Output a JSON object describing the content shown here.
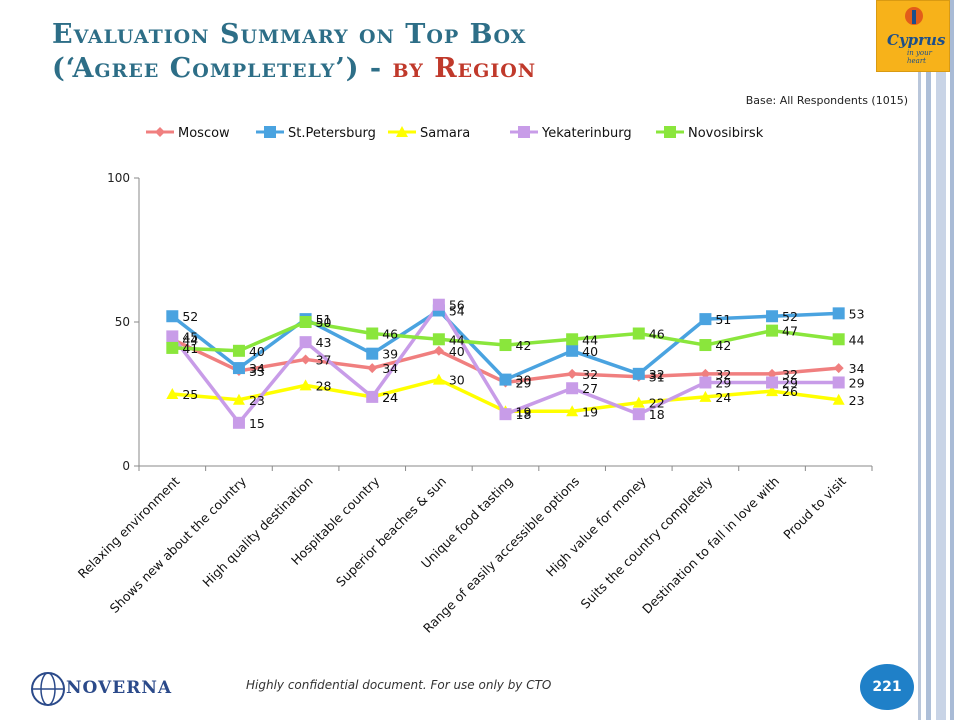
{
  "slide": {
    "title_line1": "Evaluation Summary on Top Box",
    "title_line2_main": "(‘Agree Completely’) -",
    "title_line2_accent": "by Region",
    "base_note": "Base: All Respondents (1015)",
    "footer_note": "Highly confidential document. For use only by CTO",
    "page_number": "221",
    "logo_right": {
      "word": "Cyprus",
      "tagline": "in your heart"
    },
    "logo_left": {
      "word": "NOVERNA"
    }
  },
  "chart_data": {
    "type": "line",
    "title": "",
    "xlabel": "",
    "ylabel": "",
    "ylim": [
      0,
      100
    ],
    "yticks": [
      0,
      50,
      100
    ],
    "legend_position": "top",
    "categories": [
      "Relaxing environment",
      "Shows new about the country",
      "High quality destination",
      "Hospitable country",
      "Superior beaches & sun",
      "Unique food tasting",
      "Range of easily accessible options",
      "High value for money",
      "Suits the country completely",
      "Destination to fall in love with",
      "Proud to visit"
    ],
    "series": [
      {
        "name": "Moscow",
        "color": "#f07f7f",
        "marker": "diamond",
        "values": [
          44,
          33,
          37,
          34,
          40,
          29,
          32,
          31,
          32,
          32,
          34
        ]
      },
      {
        "name": "St.Petersburg",
        "color": "#4aa3e0",
        "marker": "square",
        "values": [
          52,
          34,
          51,
          39,
          54,
          30,
          40,
          32,
          51,
          52,
          53
        ]
      },
      {
        "name": "Samara",
        "color": "#ffff00",
        "marker": "triangle",
        "values": [
          25,
          23,
          28,
          24,
          30,
          19,
          19,
          22,
          24,
          26,
          23
        ]
      },
      {
        "name": "Yekaterinburg",
        "color": "#c89ce8",
        "marker": "square",
        "values": [
          45,
          15,
          43,
          24,
          56,
          18,
          27,
          18,
          29,
          29,
          29
        ]
      },
      {
        "name": "Novosibirsk",
        "color": "#8ae63c",
        "marker": "square",
        "values": [
          41,
          40,
          50,
          46,
          44,
          42,
          44,
          46,
          42,
          47,
          44
        ]
      }
    ]
  }
}
